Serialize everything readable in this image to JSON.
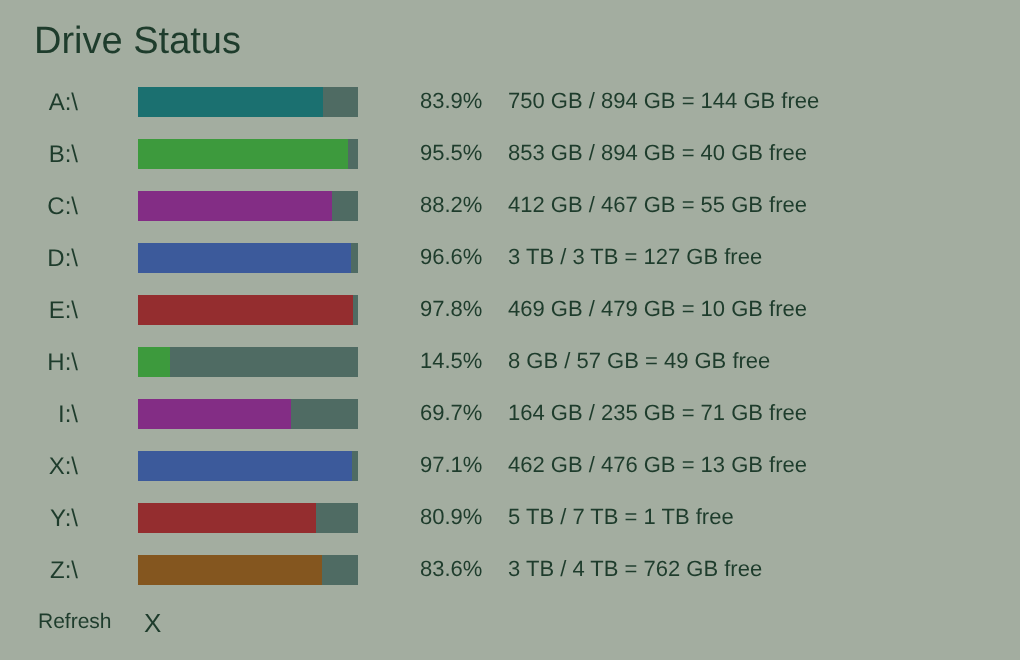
{
  "chart_data": {
    "type": "bar",
    "title": "Drive Status",
    "orientation": "horizontal",
    "stacked": true,
    "xlim": [
      0,
      100
    ],
    "tick_labels": "y",
    "categories": [
      "A:\\",
      "B:\\",
      "C:\\",
      "D:\\",
      "E:\\",
      "H:\\",
      "I:\\",
      "X:\\",
      "Y:\\",
      "Z:\\"
    ],
    "series": [
      {
        "colors": [
          "#1b7070",
          "#3d9a3d",
          "#832d85",
          "#3c5a9b",
          "#942d2f",
          "#3d9a3d",
          "#832d85",
          "#3c5a9b",
          "#942d2f",
          "#84561f"
        ],
        "values": [
          83.9,
          95.5,
          88.2,
          96.6,
          97.8,
          14.5,
          69.7,
          97.1,
          80.9,
          83.6
        ],
        "value_labels": [
          "83.9%",
          "95.5%",
          "88.2%",
          "96.6%",
          "97.8%",
          "14.5%",
          "69.7%",
          "97.1%",
          "80.9%",
          "83.6%"
        ]
      },
      {
        "color": "#4f6b63",
        "values": [
          16.1,
          4.5,
          11.8,
          3.4,
          2.2,
          85.5,
          30.3,
          2.9,
          19.1,
          16.4
        ]
      }
    ],
    "annotations": [
      "750 GB / 894 GB = 144 GB free",
      "853 GB / 894 GB = 40 GB free",
      "412 GB / 467 GB = 55 GB free",
      "3 TB / 3 TB = 127 GB free",
      "469 GB / 479 GB = 10 GB free",
      "8 GB / 57 GB = 49 GB free",
      "164 GB / 235 GB = 71 GB free",
      "462 GB / 476 GB = 13 GB free",
      "5 TB / 7 TB = 1 TB free",
      "3 TB / 4 TB = 762 GB free",
      "Refresh",
      "X"
    ]
  }
}
